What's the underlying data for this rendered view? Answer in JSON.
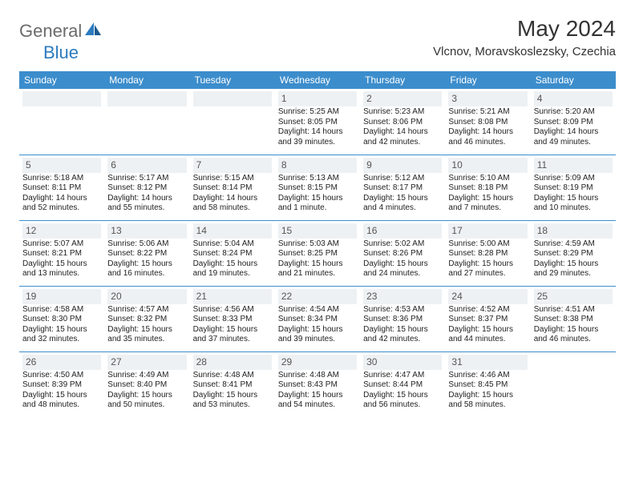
{
  "logo": {
    "part1": "General",
    "part2": "Blue"
  },
  "title": "May 2024",
  "location": "Vlcnov, Moravskoslezsky, Czechia",
  "colors": {
    "header_bg": "#3c8dcc",
    "header_text": "#ffffff",
    "daynum_bg": "#eef1f3",
    "border": "#3c8dcc",
    "logo_gray": "#6b6b6b",
    "logo_blue": "#2b7bbf"
  },
  "dayNames": [
    "Sunday",
    "Monday",
    "Tuesday",
    "Wednesday",
    "Thursday",
    "Friday",
    "Saturday"
  ],
  "weeks": [
    [
      null,
      null,
      null,
      {
        "d": "1",
        "sr": "5:25 AM",
        "ss": "8:05 PM",
        "dl": "14 hours and 39 minutes."
      },
      {
        "d": "2",
        "sr": "5:23 AM",
        "ss": "8:06 PM",
        "dl": "14 hours and 42 minutes."
      },
      {
        "d": "3",
        "sr": "5:21 AM",
        "ss": "8:08 PM",
        "dl": "14 hours and 46 minutes."
      },
      {
        "d": "4",
        "sr": "5:20 AM",
        "ss": "8:09 PM",
        "dl": "14 hours and 49 minutes."
      }
    ],
    [
      {
        "d": "5",
        "sr": "5:18 AM",
        "ss": "8:11 PM",
        "dl": "14 hours and 52 minutes."
      },
      {
        "d": "6",
        "sr": "5:17 AM",
        "ss": "8:12 PM",
        "dl": "14 hours and 55 minutes."
      },
      {
        "d": "7",
        "sr": "5:15 AM",
        "ss": "8:14 PM",
        "dl": "14 hours and 58 minutes."
      },
      {
        "d": "8",
        "sr": "5:13 AM",
        "ss": "8:15 PM",
        "dl": "15 hours and 1 minute."
      },
      {
        "d": "9",
        "sr": "5:12 AM",
        "ss": "8:17 PM",
        "dl": "15 hours and 4 minutes."
      },
      {
        "d": "10",
        "sr": "5:10 AM",
        "ss": "8:18 PM",
        "dl": "15 hours and 7 minutes."
      },
      {
        "d": "11",
        "sr": "5:09 AM",
        "ss": "8:19 PM",
        "dl": "15 hours and 10 minutes."
      }
    ],
    [
      {
        "d": "12",
        "sr": "5:07 AM",
        "ss": "8:21 PM",
        "dl": "15 hours and 13 minutes."
      },
      {
        "d": "13",
        "sr": "5:06 AM",
        "ss": "8:22 PM",
        "dl": "15 hours and 16 minutes."
      },
      {
        "d": "14",
        "sr": "5:04 AM",
        "ss": "8:24 PM",
        "dl": "15 hours and 19 minutes."
      },
      {
        "d": "15",
        "sr": "5:03 AM",
        "ss": "8:25 PM",
        "dl": "15 hours and 21 minutes."
      },
      {
        "d": "16",
        "sr": "5:02 AM",
        "ss": "8:26 PM",
        "dl": "15 hours and 24 minutes."
      },
      {
        "d": "17",
        "sr": "5:00 AM",
        "ss": "8:28 PM",
        "dl": "15 hours and 27 minutes."
      },
      {
        "d": "18",
        "sr": "4:59 AM",
        "ss": "8:29 PM",
        "dl": "15 hours and 29 minutes."
      }
    ],
    [
      {
        "d": "19",
        "sr": "4:58 AM",
        "ss": "8:30 PM",
        "dl": "15 hours and 32 minutes."
      },
      {
        "d": "20",
        "sr": "4:57 AM",
        "ss": "8:32 PM",
        "dl": "15 hours and 35 minutes."
      },
      {
        "d": "21",
        "sr": "4:56 AM",
        "ss": "8:33 PM",
        "dl": "15 hours and 37 minutes."
      },
      {
        "d": "22",
        "sr": "4:54 AM",
        "ss": "8:34 PM",
        "dl": "15 hours and 39 minutes."
      },
      {
        "d": "23",
        "sr": "4:53 AM",
        "ss": "8:36 PM",
        "dl": "15 hours and 42 minutes."
      },
      {
        "d": "24",
        "sr": "4:52 AM",
        "ss": "8:37 PM",
        "dl": "15 hours and 44 minutes."
      },
      {
        "d": "25",
        "sr": "4:51 AM",
        "ss": "8:38 PM",
        "dl": "15 hours and 46 minutes."
      }
    ],
    [
      {
        "d": "26",
        "sr": "4:50 AM",
        "ss": "8:39 PM",
        "dl": "15 hours and 48 minutes."
      },
      {
        "d": "27",
        "sr": "4:49 AM",
        "ss": "8:40 PM",
        "dl": "15 hours and 50 minutes."
      },
      {
        "d": "28",
        "sr": "4:48 AM",
        "ss": "8:41 PM",
        "dl": "15 hours and 53 minutes."
      },
      {
        "d": "29",
        "sr": "4:48 AM",
        "ss": "8:43 PM",
        "dl": "15 hours and 54 minutes."
      },
      {
        "d": "30",
        "sr": "4:47 AM",
        "ss": "8:44 PM",
        "dl": "15 hours and 56 minutes."
      },
      {
        "d": "31",
        "sr": "4:46 AM",
        "ss": "8:45 PM",
        "dl": "15 hours and 58 minutes."
      },
      null
    ]
  ],
  "labels": {
    "sunrise": "Sunrise:",
    "sunset": "Sunset:",
    "daylight": "Daylight:"
  }
}
